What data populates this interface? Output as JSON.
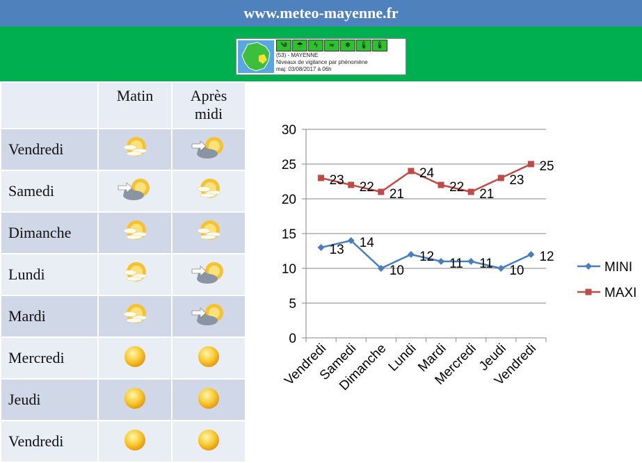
{
  "header": {
    "site": "www.meteo-mayenne.fr"
  },
  "vigilance": {
    "line1": "(53) - MAYENNE",
    "line2": "Niveaux de vigilance par phénomène",
    "line3": "maj: 03/08/2017 à 06h",
    "icons": [
      "wind-icon",
      "rain-flood-icon",
      "thunderstorm-icon",
      "flood-icon",
      "snow-ice-icon",
      "heat-icon",
      "cold-icon"
    ],
    "color": "#2fc02f"
  },
  "table": {
    "col_morning": "Matin",
    "col_afternoon_line1": "Après",
    "col_afternoon_line2": "midi",
    "rows": [
      {
        "day": "Vendredi",
        "morning": "partly-sunny-icon",
        "afternoon": "cloudy-sun-icon"
      },
      {
        "day": "Samedi",
        "morning": "cloudy-sun-icon",
        "afternoon": "partly-sunny-icon"
      },
      {
        "day": "Dimanche",
        "morning": "partly-sunny-icon",
        "afternoon": "partly-sunny-icon"
      },
      {
        "day": "Lundi",
        "morning": "partly-sunny-icon",
        "afternoon": "cloudy-sun-icon"
      },
      {
        "day": "Mardi",
        "morning": "partly-sunny-icon",
        "afternoon": "cloudy-sun-icon"
      },
      {
        "day": "Mercredi",
        "morning": "sun-icon",
        "afternoon": "sun-icon"
      },
      {
        "day": "Jeudi",
        "morning": "sun-icon",
        "afternoon": "sun-icon"
      },
      {
        "day": "Vendredi",
        "morning": "sun-icon",
        "afternoon": "sun-icon"
      }
    ]
  },
  "chart_data": {
    "type": "line",
    "categories": [
      "Vendredi",
      "Samedi",
      "Dimanche",
      "Lundi",
      "Mardi",
      "Mercredi",
      "Jeudi",
      "Vendredi"
    ],
    "series": [
      {
        "name": "MINI",
        "values": [
          13,
          14,
          10,
          12,
          11,
          11,
          10,
          12
        ],
        "color": "#4a7ebb",
        "marker": "diamond"
      },
      {
        "name": "MAXI",
        "values": [
          23,
          22,
          21,
          24,
          22,
          21,
          23,
          25
        ],
        "color": "#be4b48",
        "marker": "square"
      }
    ],
    "ylim": [
      0,
      30
    ],
    "yticks": [
      0,
      5,
      10,
      15,
      20,
      25,
      30
    ],
    "grid": true,
    "legend": "right",
    "title": "",
    "xlabel": "",
    "ylabel": ""
  }
}
